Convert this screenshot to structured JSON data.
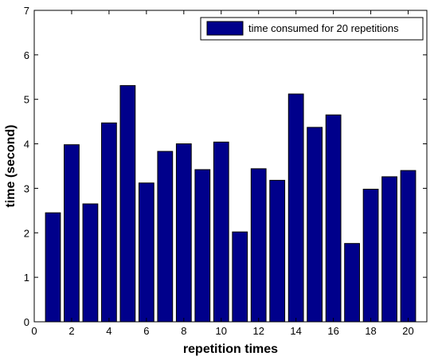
{
  "chart_data": {
    "type": "bar",
    "x": [
      1,
      2,
      3,
      4,
      5,
      6,
      7,
      8,
      9,
      10,
      11,
      12,
      13,
      14,
      15,
      16,
      17,
      18,
      19,
      20
    ],
    "series": [
      {
        "name": "time consumed for 20 repetitions",
        "values": [
          2.45,
          3.98,
          2.65,
          4.47,
          5.31,
          3.12,
          3.83,
          4.0,
          3.42,
          4.04,
          2.02,
          3.44,
          3.18,
          5.12,
          4.37,
          4.65,
          1.76,
          2.98,
          3.26,
          3.4
        ],
        "color": "#00008b"
      }
    ],
    "xlabel": "repetition times",
    "ylabel": "time (second)",
    "xlim": [
      0,
      21
    ],
    "ylim": [
      0,
      7
    ],
    "xticks": [
      0,
      2,
      4,
      6,
      8,
      10,
      12,
      14,
      16,
      18,
      20
    ],
    "yticks": [
      0,
      1,
      2,
      3,
      4,
      5,
      6,
      7
    ],
    "grid": false,
    "legend_position": "top-right"
  }
}
